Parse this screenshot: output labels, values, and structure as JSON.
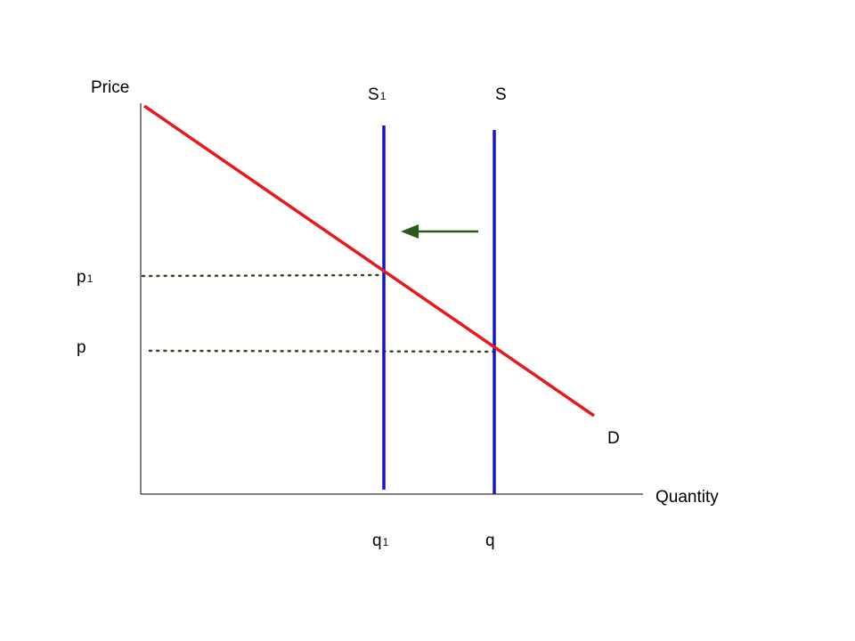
{
  "labels": {
    "y_axis": "Price",
    "x_axis": "Quantity",
    "demand": "D",
    "supply_new_base": "S",
    "supply_new_sub": "1",
    "supply_orig": "S",
    "price_new_base": "p",
    "price_new_sub": "1",
    "price_orig": "p",
    "quantity_new_base": "q",
    "quantity_new_sub": "1",
    "quantity_orig": "q"
  },
  "colors": {
    "demand": "#e8191c",
    "supply": "#1515cc",
    "arrow": "#2d5a1c",
    "guide": "#2d4a1c",
    "axis": "#000000"
  },
  "arrow_direction": "left"
}
